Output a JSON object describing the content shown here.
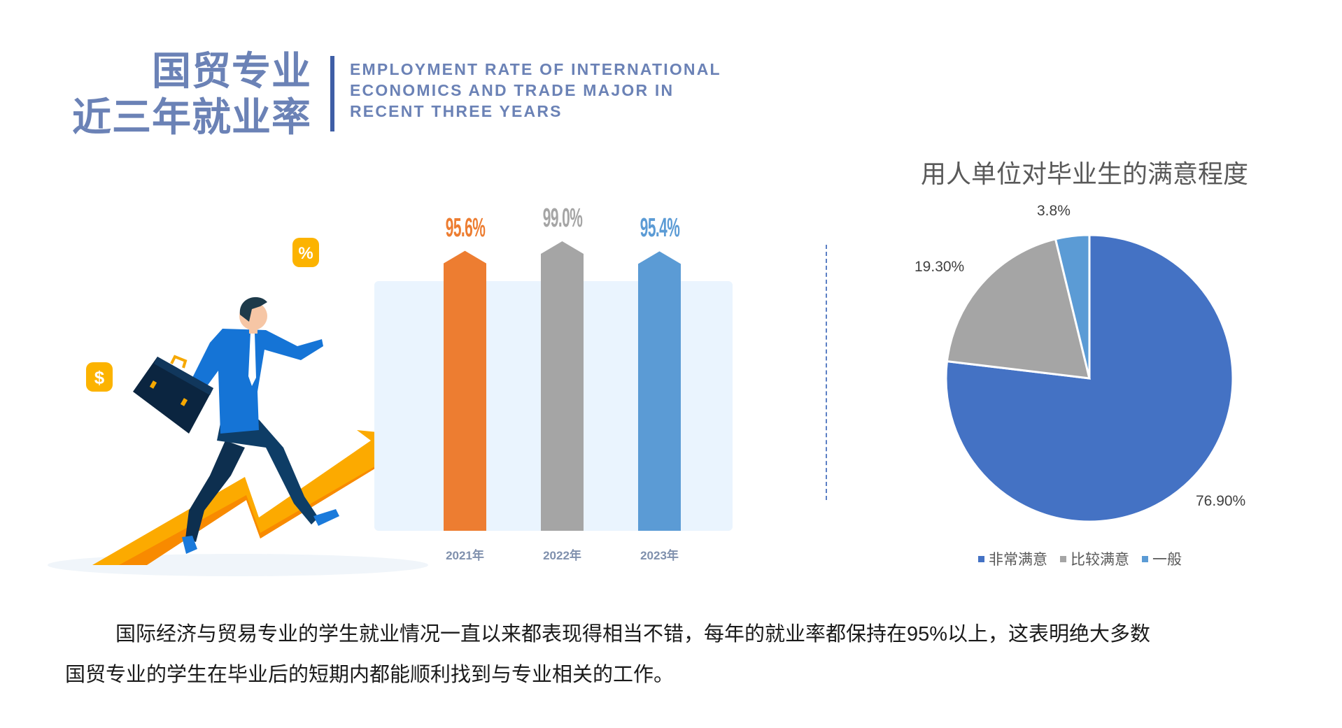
{
  "header": {
    "title_line1": "国贸专业",
    "title_line2": "近三年就业率",
    "subtitle_lines": [
      "EMPLOYMENT RATE OF INTERNATIONAL",
      "ECONOMICS AND TRADE MAJOR IN",
      "RECENT THREE YEARS"
    ]
  },
  "illustration": {
    "icons": [
      "businessman-icon",
      "briefcase-icon",
      "dollar-coin-icon",
      "percent-coin-icon",
      "rising-arrow-icon"
    ],
    "dollar": "$",
    "percent": "%"
  },
  "chart_data": [
    {
      "type": "bar",
      "categories": [
        "2021年",
        "2022年",
        "2023年"
      ],
      "values": [
        95.6,
        99.0,
        95.4
      ],
      "data_labels": [
        "95.6%",
        "99.0%",
        "95.4%"
      ],
      "colors": [
        "#ed7d31",
        "#a5a5a5",
        "#5b9bd5"
      ]
    },
    {
      "type": "pie",
      "title": "用人单位对毕业生的满意程度",
      "slices": [
        {
          "name": "非常满意",
          "value": 76.9,
          "label": "76.90%",
          "color": "#4472c4"
        },
        {
          "name": "比较满意",
          "value": 19.3,
          "label": "19.30%",
          "color": "#a5a5a5"
        },
        {
          "name": "一般",
          "value": 3.8,
          "label": "3.8%",
          "color": "#5b9bd5"
        }
      ],
      "legend_position": "bottom"
    }
  ],
  "paragraph": {
    "line1": "国际经济与贸易专业的学生就业情况一直以来都表现得相当不错，每年的就业率都保持在95%以上，这表明绝大多数",
    "line2": "国贸专业的学生在毕业后的短期内都能顺利找到与专业相关的工作。"
  }
}
